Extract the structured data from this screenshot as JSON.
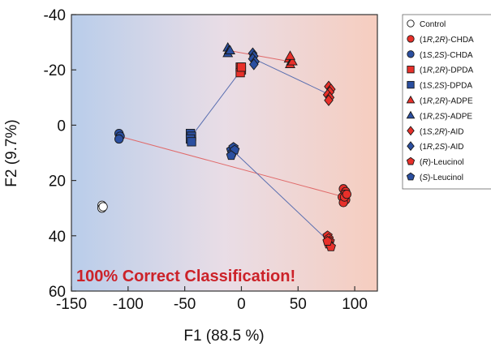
{
  "chart_data": {
    "type": "scatter",
    "title": "",
    "xlabel": "F1 (88.5 %)",
    "ylabel": "F2 (9.7%)",
    "xlim": [
      -150,
      120
    ],
    "ylim": [
      60,
      -40
    ],
    "y_axis_inverted": true,
    "xticks": [
      -150,
      -100,
      -50,
      0,
      50,
      100
    ],
    "yticks": [
      -40,
      -20,
      0,
      20,
      40,
      60
    ],
    "xtick_labels": [
      "-150",
      "-100",
      "-50",
      "0",
      "50",
      "100"
    ],
    "ytick_labels": [
      "-40",
      "-20",
      "0",
      "20",
      "40",
      "60"
    ],
    "grid": false,
    "background": "horizontal gradient from light blue (left) to light salmon (right)",
    "legend_position": "right-outside-top",
    "annotation": "100% Correct Classification!",
    "colors": {
      "red": "#e8302a",
      "blue": "#2b4fa0",
      "connector_red": "#e06a6a",
      "connector_blue": "#5a6fb0",
      "annotation": "#cc2229",
      "bg_left": "#b9cdea",
      "bg_right": "#f6cdbf"
    },
    "series": [
      {
        "name": "Control",
        "label_parts": [
          {
            "t": "Control",
            "i": false
          }
        ],
        "marker": "circle",
        "color": "white",
        "points": [
          [
            -123,
            29
          ],
          [
            -123,
            30
          ],
          [
            -122,
            29.5
          ]
        ]
      },
      {
        "name": "(1R,2R)-CHDA",
        "label_parts": [
          {
            "t": "(1",
            "i": false
          },
          {
            "t": "R",
            "i": true
          },
          {
            "t": ",2",
            "i": false
          },
          {
            "t": "R",
            "i": true
          },
          {
            "t": ")-CHDA",
            "i": false
          }
        ],
        "marker": "circle",
        "color": "red",
        "points": [
          [
            90,
            23
          ],
          [
            92,
            24
          ],
          [
            91,
            25
          ],
          [
            89,
            26
          ],
          [
            92,
            27
          ],
          [
            90,
            28
          ],
          [
            91,
            26
          ],
          [
            93,
            25
          ]
        ]
      },
      {
        "name": "(1S,2S)-CHDA",
        "label_parts": [
          {
            "t": "(1",
            "i": false
          },
          {
            "t": "S",
            "i": true
          },
          {
            "t": ",2",
            "i": false
          },
          {
            "t": "S",
            "i": true
          },
          {
            "t": ")-CHDA",
            "i": false
          }
        ],
        "marker": "circle",
        "color": "blue",
        "points": [
          [
            -108,
            3
          ],
          [
            -107,
            4
          ],
          [
            -108,
            5
          ]
        ]
      },
      {
        "name": "(1R,2R)-DPDA",
        "label_parts": [
          {
            "t": "(1",
            "i": false
          },
          {
            "t": "R",
            "i": true
          },
          {
            "t": ",2",
            "i": false
          },
          {
            "t": "R",
            "i": true
          },
          {
            "t": ")-DPDA",
            "i": false
          }
        ],
        "marker": "square",
        "color": "red",
        "points": [
          [
            -1,
            -21
          ],
          [
            0,
            -20
          ],
          [
            -1,
            -19
          ],
          [
            0,
            -21
          ]
        ]
      },
      {
        "name": "(1S,2S)-DPDA",
        "label_parts": [
          {
            "t": "(1",
            "i": false
          },
          {
            "t": "S",
            "i": true
          },
          {
            "t": ",2",
            "i": false
          },
          {
            "t": "S",
            "i": true
          },
          {
            "t": ")-DPDA",
            "i": false
          }
        ],
        "marker": "square",
        "color": "blue",
        "points": [
          [
            -45,
            3
          ],
          [
            -44,
            4
          ],
          [
            -45,
            5
          ],
          [
            -44,
            6
          ]
        ]
      },
      {
        "name": "(1R,2R)-ADPE",
        "label_parts": [
          {
            "t": "(1",
            "i": false
          },
          {
            "t": "R",
            "i": true
          },
          {
            "t": ",2",
            "i": false
          },
          {
            "t": "R",
            "i": true
          },
          {
            "t": ")-ADPE",
            "i": false
          }
        ],
        "marker": "triangle",
        "color": "red",
        "points": [
          [
            42,
            -24
          ],
          [
            44,
            -23
          ],
          [
            43,
            -22
          ],
          [
            45,
            -23
          ],
          [
            43,
            -25
          ]
        ]
      },
      {
        "name": "(1R,2S)-ADPE",
        "label_parts": [
          {
            "t": "(1",
            "i": false
          },
          {
            "t": "R",
            "i": true
          },
          {
            "t": ",2",
            "i": false
          },
          {
            "t": "S",
            "i": true
          },
          {
            "t": ")-ADPE",
            "i": false
          }
        ],
        "marker": "triangle",
        "color": "blue",
        "points": [
          [
            -12,
            -28
          ],
          [
            -11,
            -27
          ],
          [
            -12,
            -26
          ],
          [
            -10,
            -27
          ]
        ]
      },
      {
        "name": "(1S,2R)-AID",
        "label_parts": [
          {
            "t": "(1",
            "i": false
          },
          {
            "t": "S",
            "i": true
          },
          {
            "t": ",2",
            "i": false
          },
          {
            "t": "R",
            "i": true
          },
          {
            "t": ")-AID",
            "i": false
          }
        ],
        "marker": "diamond",
        "color": "red",
        "points": [
          [
            77,
            -14
          ],
          [
            79,
            -13
          ],
          [
            78,
            -12
          ],
          [
            76,
            -11
          ],
          [
            78,
            -10
          ],
          [
            77,
            -9
          ]
        ]
      },
      {
        "name": "(1R,2S)-AID",
        "label_parts": [
          {
            "t": "(1",
            "i": false
          },
          {
            "t": "R",
            "i": true
          },
          {
            "t": ",2",
            "i": false
          },
          {
            "t": "S",
            "i": true
          },
          {
            "t": ")-AID",
            "i": false
          }
        ],
        "marker": "diamond",
        "color": "blue",
        "points": [
          [
            10,
            -26
          ],
          [
            11,
            -25
          ],
          [
            10,
            -24
          ],
          [
            12,
            -23
          ],
          [
            11,
            -22
          ]
        ]
      },
      {
        "name": "(R)-Leucinol",
        "label_parts": [
          {
            "t": "(",
            "i": false
          },
          {
            "t": "R",
            "i": true
          },
          {
            "t": ")-Leucinol",
            "i": false
          }
        ],
        "marker": "pentagon",
        "color": "red",
        "points": [
          [
            76,
            40
          ],
          [
            77,
            41
          ],
          [
            78,
            42
          ],
          [
            77,
            43
          ],
          [
            79,
            44
          ],
          [
            76,
            42
          ]
        ]
      },
      {
        "name": "(S)-Leucinol",
        "label_parts": [
          {
            "t": "(",
            "i": false
          },
          {
            "t": "S",
            "i": true
          },
          {
            "t": ")-Leucinol",
            "i": false
          }
        ],
        "marker": "pentagon",
        "color": "blue",
        "points": [
          [
            -9,
            9
          ],
          [
            -7,
            8
          ],
          [
            -8,
            10
          ],
          [
            -6,
            9
          ],
          [
            -9,
            11
          ]
        ]
      }
    ],
    "connectors": [
      {
        "from": [
          -108,
          4
        ],
        "to": [
          91,
          26
        ],
        "color": "red"
      },
      {
        "from": [
          -8,
          9
        ],
        "to": [
          77,
          42
        ],
        "color": "blue"
      },
      {
        "from": [
          -44,
          4
        ],
        "to": [
          0,
          -20
        ],
        "color": "blue"
      },
      {
        "from": [
          -11,
          -27
        ],
        "to": [
          43,
          -23
        ],
        "color": "red"
      },
      {
        "from": [
          11,
          -24
        ],
        "to": [
          78,
          -11
        ],
        "color": "blue"
      }
    ]
  }
}
